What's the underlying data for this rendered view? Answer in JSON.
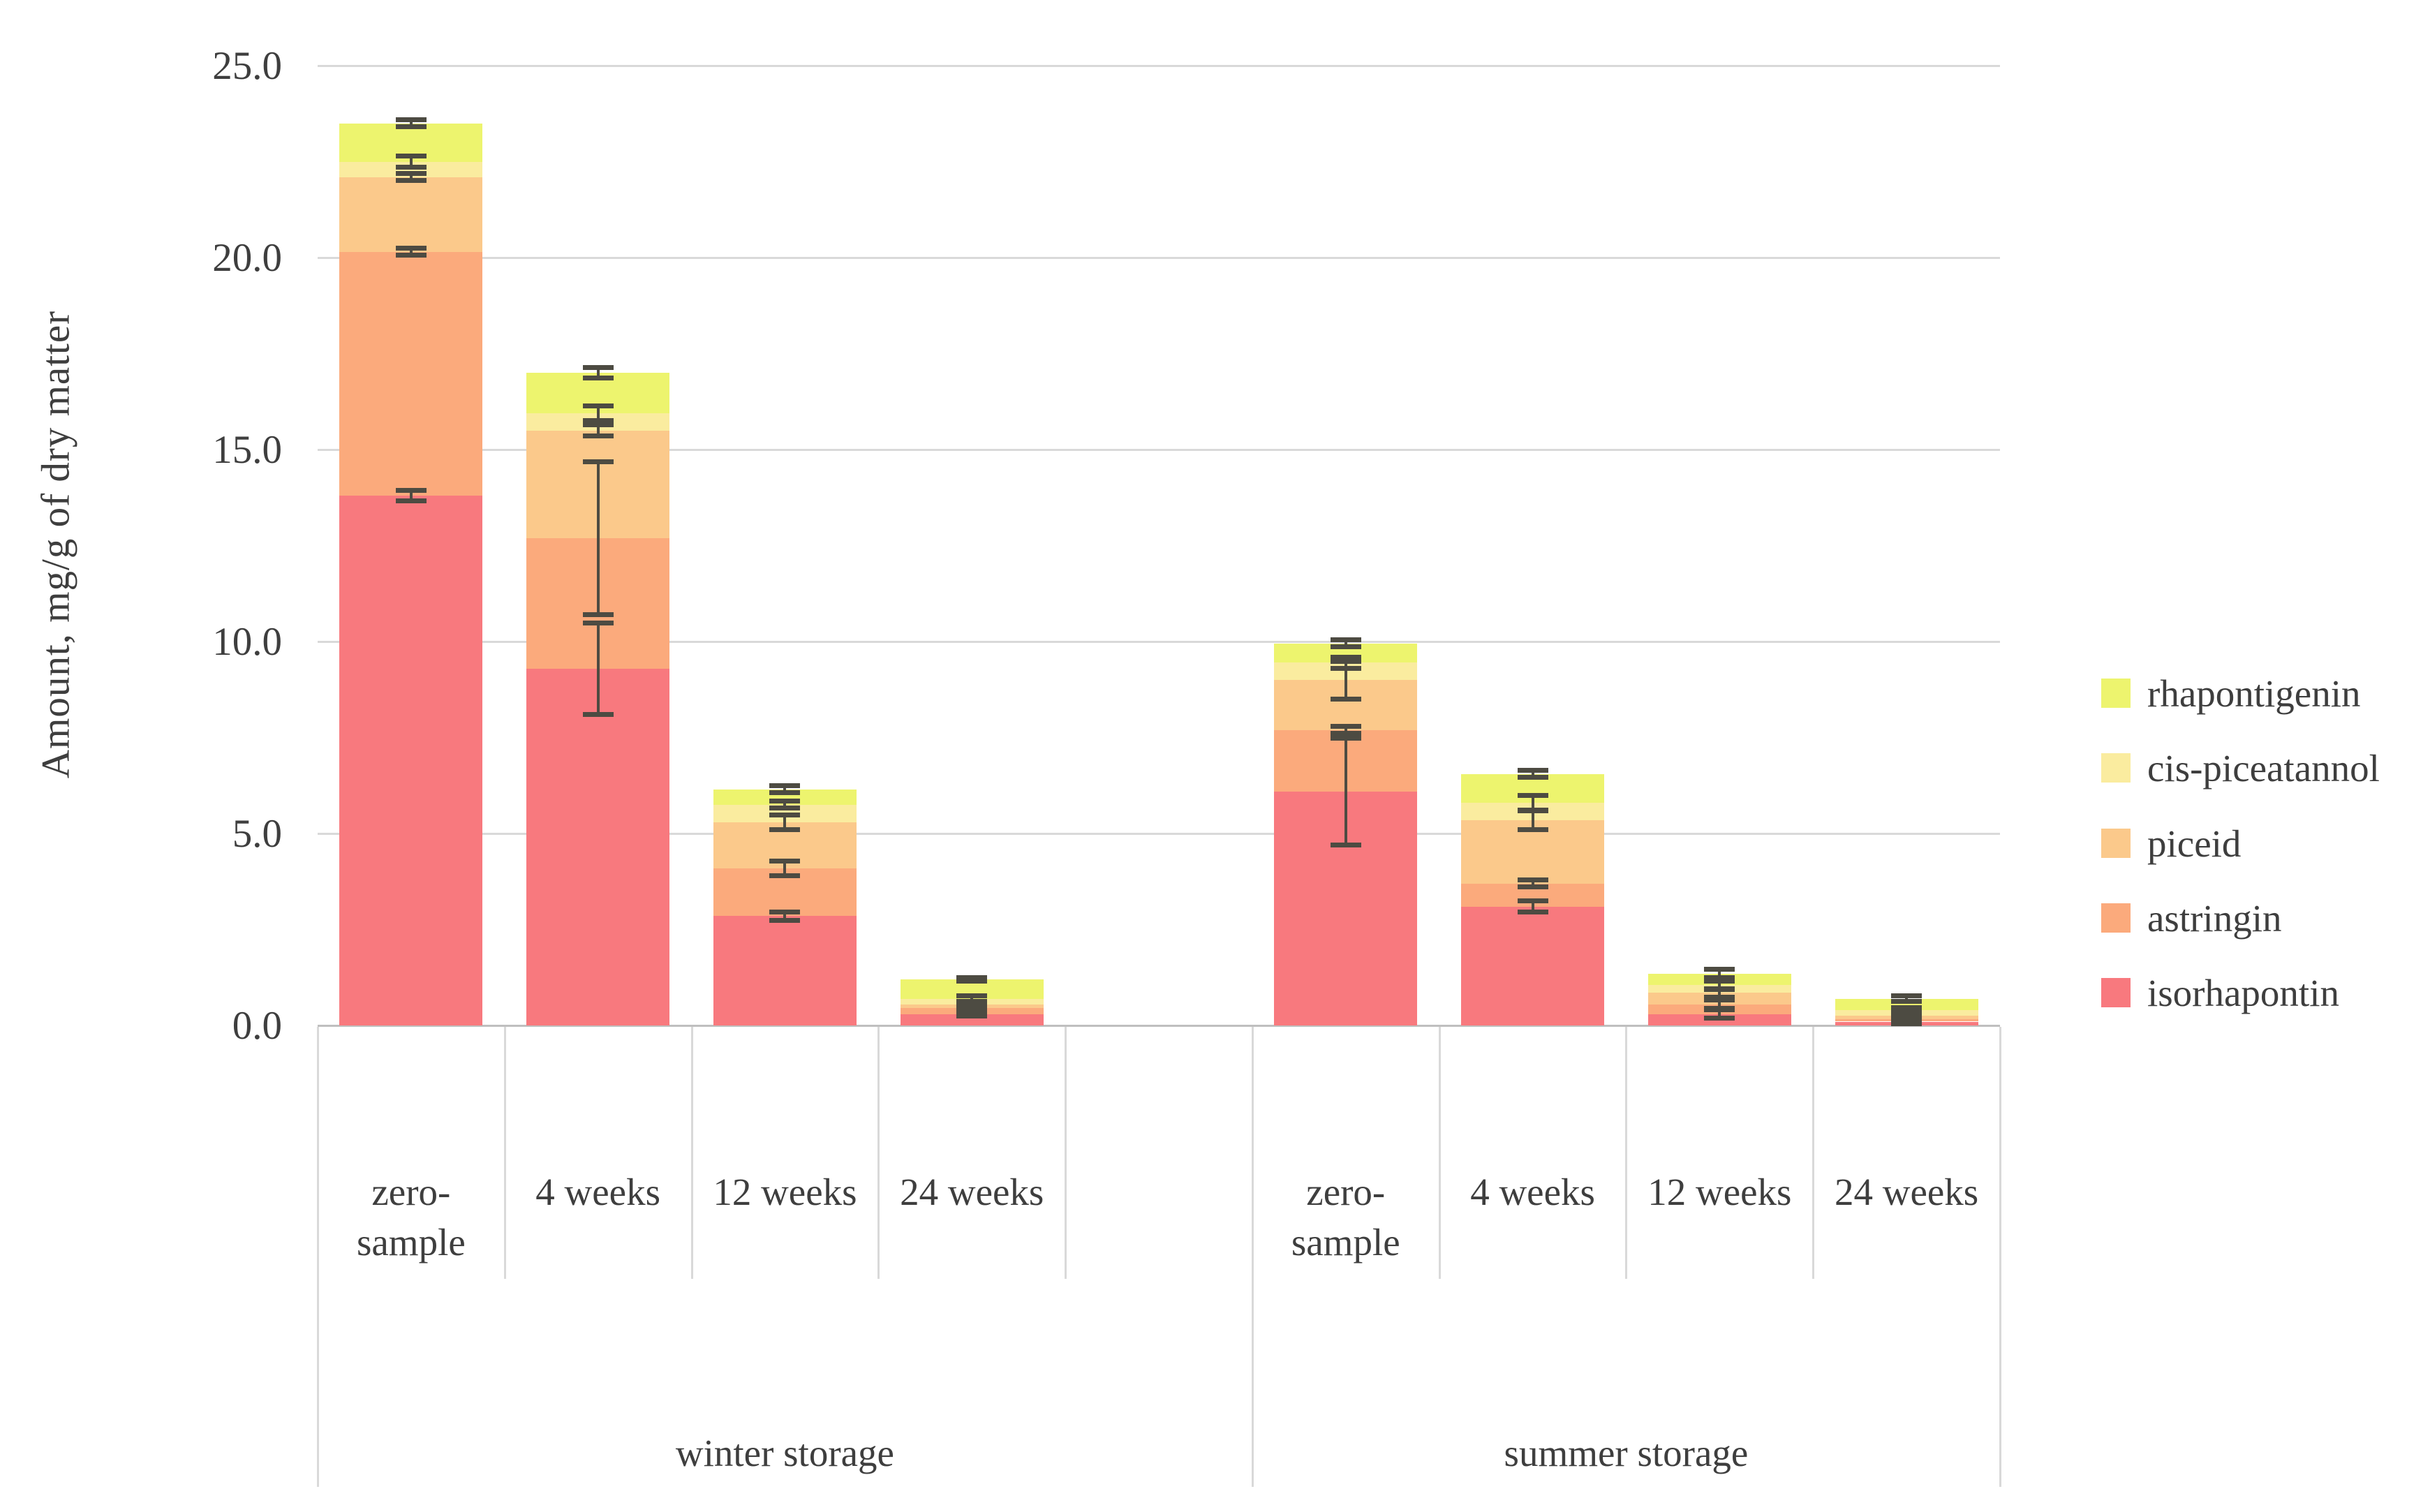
{
  "colors": {
    "background": "#FFFFFF",
    "grid": "#D9D9D9",
    "axis_line": "#BFBFBF",
    "error_bar": "#4D4B42",
    "text": "#3E3E3E"
  },
  "chart_data": {
    "type": "bar",
    "stacked": true,
    "title": "",
    "xlabel": "",
    "ylabel": "Amount, mg/g of dry matter",
    "ylim": [
      0,
      25
    ],
    "ytick_step": 5,
    "ytick_labels": [
      "0.0",
      "5.0",
      "10.0",
      "15.0",
      "20.0",
      "25.0"
    ],
    "grid": true,
    "legend_position": "right",
    "groups": [
      {
        "label": "winter storage",
        "categories": [
          "zero-\nsample",
          "4 weeks",
          "12 weeks",
          "24 weeks"
        ]
      },
      {
        "label": "summer storage",
        "categories": [
          "zero-\nsample",
          "4 weeks",
          "12 weeks",
          "24 weeks"
        ]
      }
    ],
    "bar_order": [
      "winter zero-sample",
      "winter 4 weeks",
      "winter 12 weeks",
      "winter 24 weeks",
      "summer zero-sample",
      "summer 4 weeks",
      "summer 12 weeks",
      "summer 24 weeks"
    ],
    "series": [
      {
        "name": "isorhapontin",
        "color": "#F8797E",
        "values": [
          13.8,
          9.3,
          2.85,
          0.3,
          6.1,
          3.1,
          0.3,
          0.1
        ],
        "errors": [
          0.15,
          1.2,
          0.12,
          0.06,
          1.4,
          0.15,
          0.12,
          0.06
        ]
      },
      {
        "name": "astringin",
        "color": "#FBAA7C",
        "values": [
          6.35,
          3.4,
          1.25,
          0.15,
          1.6,
          0.6,
          0.25,
          0.07
        ],
        "errors": [
          0.1,
          2.0,
          0.2,
          0.06,
          0.1,
          0.1,
          0.12,
          0.06
        ]
      },
      {
        "name": "piceid",
        "color": "#FBC98B",
        "values": [
          1.95,
          2.8,
          1.2,
          0.1,
          1.3,
          1.65,
          0.3,
          0.08
        ],
        "errors": [
          0.1,
          0.15,
          0.2,
          0.06,
          0.5,
          0.25,
          0.12,
          0.06
        ]
      },
      {
        "name": "cis-piceatannol",
        "color": "#FAEC9F",
        "values": [
          0.4,
          0.45,
          0.45,
          0.15,
          0.45,
          0.45,
          0.2,
          0.15
        ],
        "errors": [
          0.15,
          0.2,
          0.1,
          0.08,
          0.15,
          0.2,
          0.12,
          0.08
        ]
      },
      {
        "name": "rhapontigenin",
        "color": "#EDF46E",
        "values": [
          1.0,
          1.05,
          0.4,
          0.5,
          0.5,
          0.75,
          0.3,
          0.3
        ],
        "errors": [
          0.1,
          0.15,
          0.1,
          0.06,
          0.1,
          0.1,
          0.12,
          0.08
        ]
      }
    ],
    "totals": [
      23.5,
      17.0,
      6.15,
      1.2,
      9.95,
      6.55,
      1.35,
      0.7
    ],
    "legend": [
      {
        "label": "rhapontigenin",
        "color": "#EDF46E"
      },
      {
        "label": "cis-piceatannol",
        "color": "#FAEC9F"
      },
      {
        "label": "piceid",
        "color": "#FBC98B"
      },
      {
        "label": "astringin",
        "color": "#FBAA7C"
      },
      {
        "label": "isorhapontin",
        "color": "#F8797E"
      }
    ]
  }
}
